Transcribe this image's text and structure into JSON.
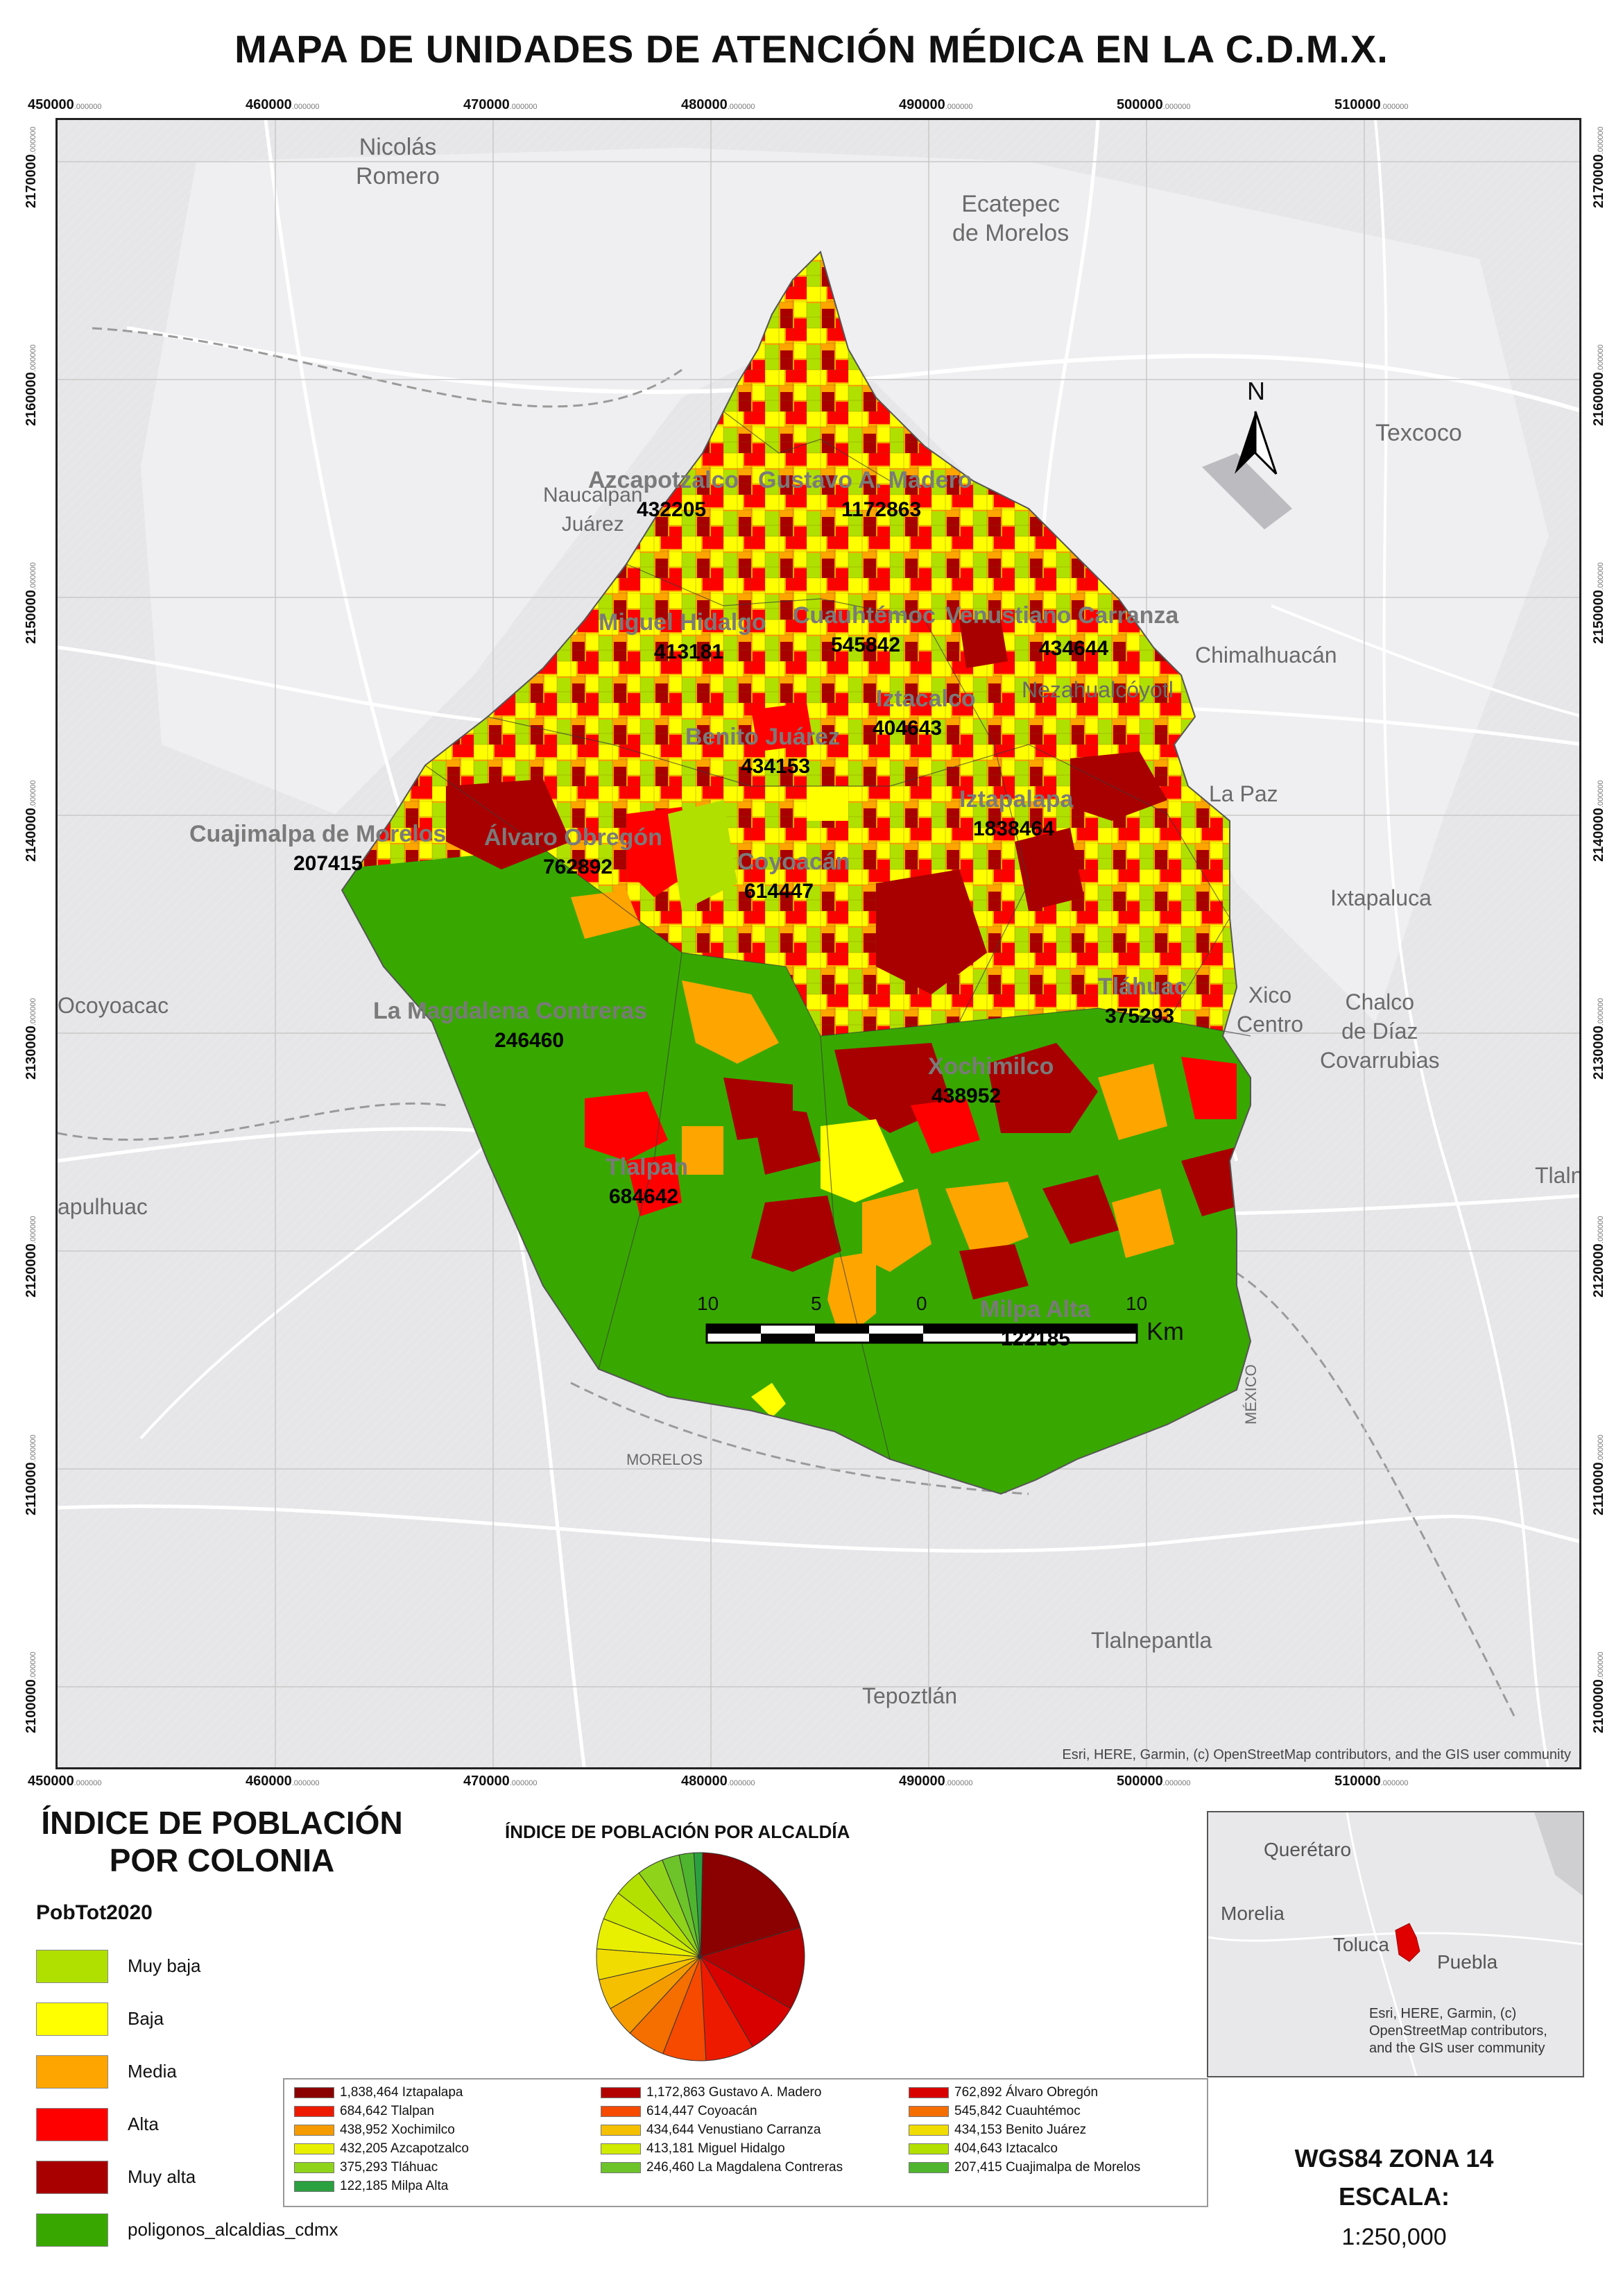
{
  "title": "MAPA DE UNIDADES DE ATENCIÓN MÉDICA EN LA C.D.M.X.",
  "grid": {
    "x_ticks": [
      "450000",
      "460000",
      "470000",
      "480000",
      "490000",
      "500000",
      "510000"
    ],
    "x_tick_suffix": ".000000",
    "y_ticks": [
      "2170000",
      "2160000",
      "2150000",
      "2140000",
      "2130000",
      "2120000",
      "2110000",
      "2100000"
    ],
    "y_tick_suffix": ".000000"
  },
  "basemap_places": [
    {
      "name": "Nicolás\nRomero"
    },
    {
      "name": "Ecatepec\nde Morelos"
    },
    {
      "name": "Texcoco"
    },
    {
      "name": "Naucalpan\nJuárez"
    },
    {
      "name": "Chimalhuacán"
    },
    {
      "name": "Nezahualcóyotl"
    },
    {
      "name": "La Paz"
    },
    {
      "name": "Ixtapaluca"
    },
    {
      "name": "Xico\nCentro"
    },
    {
      "name": "Chalco\nde Díaz\nCovarrubias"
    },
    {
      "name": "Ocoyoacac"
    },
    {
      "name": "apulhuac"
    },
    {
      "name": "Tlaln"
    },
    {
      "name": "Tlalnepantla"
    },
    {
      "name": "Tepoztlán"
    },
    {
      "name": "MORELOS"
    },
    {
      "name": "MÉXICO"
    }
  ],
  "alcaldias": [
    {
      "name": "Azcapotzalco",
      "pop": "432205"
    },
    {
      "name": "Gustavo A. Madero",
      "pop": "1172863"
    },
    {
      "name": "Miguel Hidalgo",
      "pop": "413181"
    },
    {
      "name": "Cuauhtémoc",
      "pop": "545842"
    },
    {
      "name": "Venustiano Carranza",
      "pop": "434644"
    },
    {
      "name": "Iztacalco",
      "pop": "404643"
    },
    {
      "name": "Benito Juárez",
      "pop": "434153"
    },
    {
      "name": "Cuajimalpa de Morelos",
      "pop": "207415"
    },
    {
      "name": "Álvaro Obregón",
      "pop": "762892"
    },
    {
      "name": "Iztapalapa",
      "pop": "1838464"
    },
    {
      "name": "Coyoacán",
      "pop": "614447"
    },
    {
      "name": "Tláhuac",
      "pop": "375293"
    },
    {
      "name": "La Magdalena Contreras",
      "pop": "246460"
    },
    {
      "name": "Xochimilco",
      "pop": "438952"
    },
    {
      "name": "Tlalpan",
      "pop": "684642"
    },
    {
      "name": "Milpa Alta",
      "pop": "122185"
    }
  ],
  "scalebar": {
    "labels": [
      "10",
      "5",
      "0",
      "10"
    ],
    "unit": "Km"
  },
  "north": "N",
  "credit": "Esri, HERE, Garmin, (c) OpenStreetMap contributors, and the GIS user community",
  "legend": {
    "title_line1": "ÍNDICE DE POBLACIÓN",
    "title_line2": "POR COLONIA",
    "field": "PobTot2020",
    "classes": [
      {
        "label": "Muy baja",
        "color": "#b0e000"
      },
      {
        "label": "Baja",
        "color": "#ffff00"
      },
      {
        "label": "Media",
        "color": "#ffa500"
      },
      {
        "label": "Alta",
        "color": "#ff0000"
      },
      {
        "label": "Muy alta",
        "color": "#a80000"
      },
      {
        "label": "poligonos_alcaldias_cdmx",
        "color": "#38a800"
      }
    ]
  },
  "chart_data": {
    "type": "pie",
    "title": "ÍNDICE DE POBLACIÓN POR ALCALDÍA",
    "categories": [
      "Iztapalapa",
      "Gustavo A. Madero",
      "Álvaro Obregón",
      "Tlalpan",
      "Coyoacán",
      "Cuauhtémoc",
      "Xochimilco",
      "Venustiano Carranza",
      "Benito Juárez",
      "Azcapotzalco",
      "Miguel Hidalgo",
      "Iztacalco",
      "Tláhuac",
      "La Magdalena Contreras",
      "Cuajimalpa de Morelos",
      "Milpa Alta"
    ],
    "values": [
      1838464,
      1172863,
      762892,
      684642,
      614447,
      545842,
      438952,
      434644,
      434153,
      432205,
      413181,
      404643,
      375293,
      246460,
      207415,
      122185
    ],
    "legend_labels": [
      "1,838,464 Iztapalapa",
      "1,172,863 Gustavo A. Madero",
      "762,892 Álvaro Obregón",
      "684,642 Tlalpan",
      "614,447 Coyoacán",
      "545,842 Cuauhtémoc",
      "438,952 Xochimilco",
      "434,644 Venustiano Carranza",
      "434,153 Benito Juárez",
      "432,205 Azcapotzalco",
      "413,181 Miguel Hidalgo",
      "404,643 Iztacalco",
      "375,293 Tláhuac",
      "246,460 La Magdalena Contreras",
      "207,415 Cuajimalpa de Morelos",
      "122,185 Milpa Alta"
    ],
    "colors": [
      "#8b0000",
      "#b30000",
      "#d90000",
      "#ee1a00",
      "#f54a00",
      "#f56e00",
      "#f59b00",
      "#f5c000",
      "#f0dc00",
      "#e8f000",
      "#d0ea00",
      "#b3e000",
      "#8fd41a",
      "#6cc32a",
      "#4fb52e",
      "#2aa040"
    ]
  },
  "inset": {
    "places": [
      "Querétaro",
      "Morelia",
      "Toluca",
      "Puebla"
    ],
    "credit_lines": [
      "Esri, HERE, Garmin, (c)",
      "OpenStreetMap contributors,",
      "and the GIS user community"
    ]
  },
  "projection": "WGS84 ZONA 14",
  "scale_label": "ESCALA:",
  "scale_value": "1:250,000"
}
